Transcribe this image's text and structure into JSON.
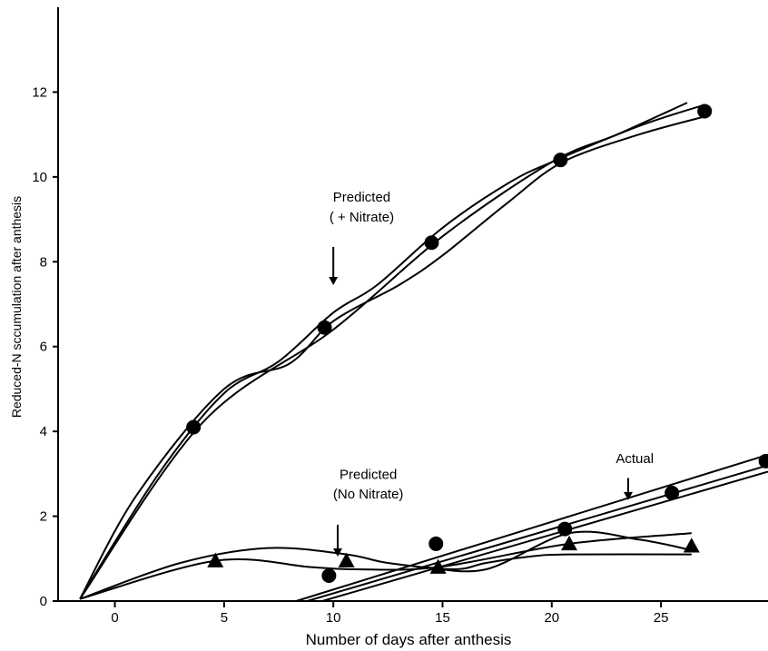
{
  "chart_data": {
    "type": "scatter",
    "title": "",
    "xlabel": "Number of days after anthesis",
    "ylabel": "Reduced-N sccumulation after anthesis",
    "xlim": [
      -2.6,
      29.9
    ],
    "ylim": [
      0,
      14
    ],
    "x_ticks": [
      0,
      5,
      10,
      15,
      20,
      25
    ],
    "x_tick_labels": [
      "0",
      "5",
      "10",
      "15",
      "20",
      "25"
    ],
    "y_ticks": [
      0,
      2,
      4,
      6,
      8,
      10,
      12
    ],
    "y_tick_labels": [
      "0",
      "2",
      "4",
      "6",
      "8",
      "10",
      "12"
    ],
    "grid": false,
    "series": [
      {
        "marker": "circle",
        "points": [
          {
            "x": 3.6,
            "y": 4.1
          },
          {
            "x": 9.6,
            "y": 6.45
          },
          {
            "x": 14.5,
            "y": 8.45
          },
          {
            "x": 20.4,
            "y": 10.4
          },
          {
            "x": 27.0,
            "y": 11.55
          }
        ]
      },
      {
        "marker": "circle",
        "points": [
          {
            "x": 9.8,
            "y": 0.6
          },
          {
            "x": 14.7,
            "y": 1.35
          },
          {
            "x": 20.6,
            "y": 1.7
          },
          {
            "x": 25.5,
            "y": 2.55
          },
          {
            "x": 29.8,
            "y": 3.3
          }
        ]
      },
      {
        "marker": "triangle",
        "points": [
          {
            "x": 4.6,
            "y": 0.95
          },
          {
            "x": 10.6,
            "y": 0.95
          },
          {
            "x": 14.8,
            "y": 0.8
          },
          {
            "x": 20.8,
            "y": 1.35
          },
          {
            "x": 26.4,
            "y": 1.3
          }
        ]
      }
    ],
    "curves": [
      {
        "points": [
          [
            -1.6,
            0.05
          ],
          [
            2,
            3.0
          ],
          [
            5,
            4.9
          ],
          [
            7.5,
            5.65
          ],
          [
            10,
            6.8
          ],
          [
            12,
            7.45
          ],
          [
            15,
            8.8
          ],
          [
            18,
            9.85
          ],
          [
            20,
            10.35
          ],
          [
            24,
            11.2
          ],
          [
            27,
            11.7
          ]
        ]
      },
      {
        "points": [
          [
            -1.6,
            0.05
          ],
          [
            1,
            2.5
          ],
          [
            5,
            5.0
          ],
          [
            8,
            5.6
          ],
          [
            10,
            6.6
          ],
          [
            13,
            7.45
          ],
          [
            15,
            8.15
          ],
          [
            18,
            9.4
          ],
          [
            20.5,
            10.35
          ],
          [
            24,
            11.0
          ],
          [
            27.2,
            11.45
          ]
        ]
      },
      {
        "points": [
          [
            -1.6,
            0.05
          ],
          [
            4,
            4.2
          ],
          [
            10,
            6.4
          ],
          [
            15,
            8.6
          ],
          [
            20,
            10.35
          ],
          [
            23,
            11.0
          ],
          [
            26.2,
            11.75
          ]
        ]
      },
      {
        "points": [
          [
            -1.6,
            0.05
          ],
          [
            4.6,
            0.95
          ],
          [
            9,
            0.8
          ],
          [
            11,
            0.75
          ],
          [
            14.8,
            0.8
          ],
          [
            20.8,
            1.35
          ],
          [
            26.4,
            1.6
          ]
        ]
      },
      {
        "points": [
          [
            -1.6,
            0.05
          ],
          [
            3,
            0.9
          ],
          [
            7,
            1.25
          ],
          [
            10.6,
            1.1
          ],
          [
            12.5,
            0.9
          ],
          [
            15.5,
            0.75
          ],
          [
            17,
            0.9
          ],
          [
            19,
            1.05
          ],
          [
            20.8,
            1.1
          ],
          [
            26.4,
            1.1
          ]
        ]
      },
      {
        "points": [
          [
            8.3,
            0.0
          ],
          [
            29.9,
            3.45
          ]
        ]
      },
      {
        "points": [
          [
            8.8,
            0.0
          ],
          [
            29.9,
            3.2
          ]
        ]
      },
      {
        "points": [
          [
            9.5,
            0.0
          ],
          [
            29.9,
            3.05
          ]
        ]
      },
      {
        "points": [
          [
            14.2,
            0.8
          ],
          [
            17,
            0.75
          ],
          [
            20.8,
            1.6
          ],
          [
            24,
            1.45
          ],
          [
            26.4,
            1.2
          ]
        ]
      }
    ],
    "annotations": [
      {
        "text": "Predicted",
        "x": 11.3,
        "y": 9.42
      },
      {
        "text": "( + Nitrate)",
        "x": 11.3,
        "y": 8.95
      },
      {
        "text": "Predicted",
        "x": 11.6,
        "y": 2.88
      },
      {
        "text": "(No Nitrate)",
        "x": 11.6,
        "y": 2.42
      },
      {
        "text": "Actual",
        "x": 23.8,
        "y": 3.25
      }
    ],
    "arrows": [
      {
        "x": 10.0,
        "y_from": 8.35,
        "y_to": 7.45
      },
      {
        "x": 10.2,
        "y_from": 1.8,
        "y_to": 1.05
      },
      {
        "x": 23.5,
        "y_from": 2.9,
        "y_to": 2.38
      }
    ]
  }
}
